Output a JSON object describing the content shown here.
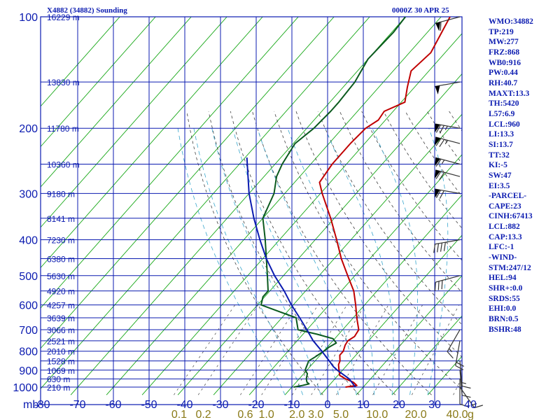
{
  "header": {
    "station": "X4882 (34882) Sounding",
    "time": "0000Z 30 APR 25"
  },
  "indices": [
    "WMO:34882",
    "TP:219",
    "MW:277",
    "FRZ:868",
    "WB0:916",
    "PW:0.44",
    "RH:40.7",
    "MAXT:13.3",
    "TH:5420",
    "L57:6.9",
    "LCL:960",
    "LI:13.3",
    "SI:13.7",
    "TT:32",
    "KI:-5",
    "SW:47",
    "EI:3.5",
    "-PARCEL-",
    "CAPE:23",
    "CINH:67413",
    "LCL:882",
    "CAP:13.3",
    "LFC:-1",
    "-WIND-",
    "STM:247/12",
    "HEL:94",
    "SHR+:0.0",
    "SRDS:55",
    "EHI:0.0",
    "BRN:0.5",
    "BSHR:48"
  ],
  "colors": {
    "grid": "#0b1bb0",
    "isotherm": "#18a818",
    "temperature": "#c00000",
    "dewpoint": "#0b5a1e",
    "parcel": "#0b1bb0",
    "mixing_ratio": "#38a6cc",
    "adiabat": "#404040",
    "wind_barb": "#333333",
    "mixing_label": "#8a7a18"
  },
  "chart_data": {
    "type": "line",
    "title": "X4882 (34882) Sounding",
    "subtitle": "0000Z 30 APR 25",
    "xlabel": "",
    "ylabel": "mb",
    "xlim": [
      -80,
      40
    ],
    "ylim": [
      1000,
      100
    ],
    "x_ticks": [
      -80,
      -70,
      -60,
      -50,
      -40,
      -30,
      -20,
      -10,
      0,
      10,
      20,
      30,
      40
    ],
    "x_tick_labels": [
      "-80",
      "-70",
      "-60",
      "-50",
      "-40",
      "-30",
      "-20",
      "-10",
      "0",
      "10",
      "20",
      "30",
      "40"
    ],
    "y_tick_labels": [
      {
        "p": 100,
        "label": "100"
      },
      {
        "p": 200,
        "label": "200"
      },
      {
        "p": 300,
        "label": "300"
      },
      {
        "p": 400,
        "label": "400"
      },
      {
        "p": 500,
        "label": "500"
      },
      {
        "p": 600,
        "label": "600"
      },
      {
        "p": 700,
        "label": "700"
      },
      {
        "p": 800,
        "label": "800"
      },
      {
        "p": 900,
        "label": "900"
      },
      {
        "p": 1000,
        "label": "1000"
      }
    ],
    "height_labels": [
      {
        "p": 100,
        "label": "16229 m"
      },
      {
        "p": 150,
        "label": "13830 m"
      },
      {
        "p": 200,
        "label": "11780 m"
      },
      {
        "p": 250,
        "label": "10360 m"
      },
      {
        "p": 300,
        "label": "9180 m"
      },
      {
        "p": 350,
        "label": "8141 m"
      },
      {
        "p": 400,
        "label": "7230 m"
      },
      {
        "p": 450,
        "label": "6380 m"
      },
      {
        "p": 500,
        "label": "5630 m"
      },
      {
        "p": 550,
        "label": "4920 m"
      },
      {
        "p": 600,
        "label": "4257 m"
      },
      {
        "p": 650,
        "label": "3639 m"
      },
      {
        "p": 700,
        "label": "3066 m"
      },
      {
        "p": 750,
        "label": "2521 m"
      },
      {
        "p": 800,
        "label": "2010 m"
      },
      {
        "p": 850,
        "label": "1528 m"
      },
      {
        "p": 900,
        "label": "1069 m"
      },
      {
        "p": 950,
        "label": "630 m"
      },
      {
        "p": 1000,
        "label": "210 m"
      }
    ],
    "mixing_ratio_labels": [
      {
        "w": 0.1,
        "label": "0.1"
      },
      {
        "w": 0.2,
        "label": "0.2"
      },
      {
        "w": 0.6,
        "label": "0.6"
      },
      {
        "w": 1.0,
        "label": "1.0"
      },
      {
        "w": 2.0,
        "label": "2.0"
      },
      {
        "w": 3.0,
        "label": "3.0"
      },
      {
        "w": 5.0,
        "label": "5.0"
      },
      {
        "w": 10.0,
        "label": "10.0"
      },
      {
        "w": 20.0,
        "label": "20.0"
      },
      {
        "w": 40.0,
        "label": "40.0"
      }
    ],
    "mixing_ratio_unit": "g",
    "series": [
      {
        "key": "temperature",
        "points": [
          [
            1000,
            5.0
          ],
          [
            990,
            7.8
          ],
          [
            970,
            6.0
          ],
          [
            950,
            3.0
          ],
          [
            930,
            0.5
          ],
          [
            900,
            -1.0
          ],
          [
            870,
            -2.5
          ],
          [
            850,
            -3.0
          ],
          [
            820,
            -4.5
          ],
          [
            800,
            -4.5
          ],
          [
            770,
            -5.5
          ],
          [
            750,
            -5.8
          ],
          [
            730,
            -5.0
          ],
          [
            700,
            -5.5
          ],
          [
            650,
            -9.0
          ],
          [
            600,
            -12.5
          ],
          [
            550,
            -16.5
          ],
          [
            500,
            -22.0
          ],
          [
            450,
            -28.0
          ],
          [
            400,
            -34.0
          ],
          [
            350,
            -41.0
          ],
          [
            300,
            -49.5
          ],
          [
            280,
            -53.0
          ],
          [
            250,
            -54.0
          ],
          [
            220,
            -54.0
          ],
          [
            200,
            -53.5
          ],
          [
            190,
            -52.0
          ],
          [
            180,
            -52.5
          ],
          [
            170,
            -49.0
          ],
          [
            155,
            -52.0
          ],
          [
            140,
            -55.0
          ],
          [
            125,
            -54.0
          ],
          [
            110,
            -56.0
          ],
          [
            100,
            -57.5
          ]
        ]
      },
      {
        "key": "dewpoint",
        "points": [
          [
            1000,
            -9.5
          ],
          [
            990,
            -7.5
          ],
          [
            980,
            -6.0
          ],
          [
            970,
            -7.0
          ],
          [
            950,
            -8.0
          ],
          [
            920,
            -9.0
          ],
          [
            900,
            -10.5
          ],
          [
            880,
            -11.0
          ],
          [
            860,
            -11.5
          ],
          [
            850,
            -11.8
          ],
          [
            830,
            -11.0
          ],
          [
            800,
            -10.0
          ],
          [
            780,
            -9.5
          ],
          [
            760,
            -8.5
          ],
          [
            740,
            -10.5
          ],
          [
            720,
            -16.0
          ],
          [
            700,
            -22.5
          ],
          [
            650,
            -26.0
          ],
          [
            600,
            -39.0
          ],
          [
            570,
            -40.5
          ],
          [
            550,
            -40.5
          ],
          [
            500,
            -44.5
          ],
          [
            450,
            -49.0
          ],
          [
            400,
            -54.0
          ],
          [
            350,
            -60.0
          ],
          [
            300,
            -63.0
          ],
          [
            270,
            -66.5
          ],
          [
            250,
            -68.0
          ],
          [
            220,
            -69.5
          ],
          [
            200,
            -68.0
          ],
          [
            180,
            -67.5
          ],
          [
            170,
            -67.5
          ],
          [
            150,
            -68.0
          ],
          [
            130,
            -70.0
          ],
          [
            110,
            -69.5
          ],
          [
            100,
            -70.0
          ]
        ]
      },
      {
        "key": "parcel",
        "points": [
          [
            1000,
            7.8
          ],
          [
            950,
            4.0
          ],
          [
            900,
            -1.5
          ],
          [
            880,
            -3.5
          ],
          [
            850,
            -6.0
          ],
          [
            800,
            -10.5
          ],
          [
            750,
            -15.5
          ],
          [
            700,
            -20.0
          ],
          [
            650,
            -25.0
          ],
          [
            600,
            -30.5
          ],
          [
            550,
            -36.0
          ],
          [
            500,
            -42.5
          ],
          [
            450,
            -49.0
          ],
          [
            400,
            -55.5
          ],
          [
            350,
            -62.5
          ],
          [
            300,
            -70.0
          ],
          [
            240,
            -79.5
          ]
        ]
      }
    ],
    "wind_barbs": [
      {
        "p": 100,
        "dir": 255,
        "spd": 60
      },
      {
        "p": 150,
        "dir": 260,
        "spd": 50
      },
      {
        "p": 200,
        "dir": 280,
        "spd": 75
      },
      {
        "p": 220,
        "dir": 285,
        "spd": 75
      },
      {
        "p": 250,
        "dir": 285,
        "spd": 65
      },
      {
        "p": 270,
        "dir": 285,
        "spd": 70
      },
      {
        "p": 300,
        "dir": 280,
        "spd": 70
      },
      {
        "p": 400,
        "dir": 260,
        "spd": 40
      },
      {
        "p": 500,
        "dir": 255,
        "spd": 30
      },
      {
        "p": 700,
        "dir": 210,
        "spd": 15
      },
      {
        "p": 750,
        "dir": 190,
        "spd": 20
      },
      {
        "p": 850,
        "dir": 175,
        "spd": 15
      },
      {
        "p": 900,
        "dir": 175,
        "spd": 10
      },
      {
        "p": 950,
        "dir": 180,
        "spd": 10
      },
      {
        "p": 1000,
        "dir": 145,
        "spd": 15
      }
    ],
    "grid": true
  }
}
